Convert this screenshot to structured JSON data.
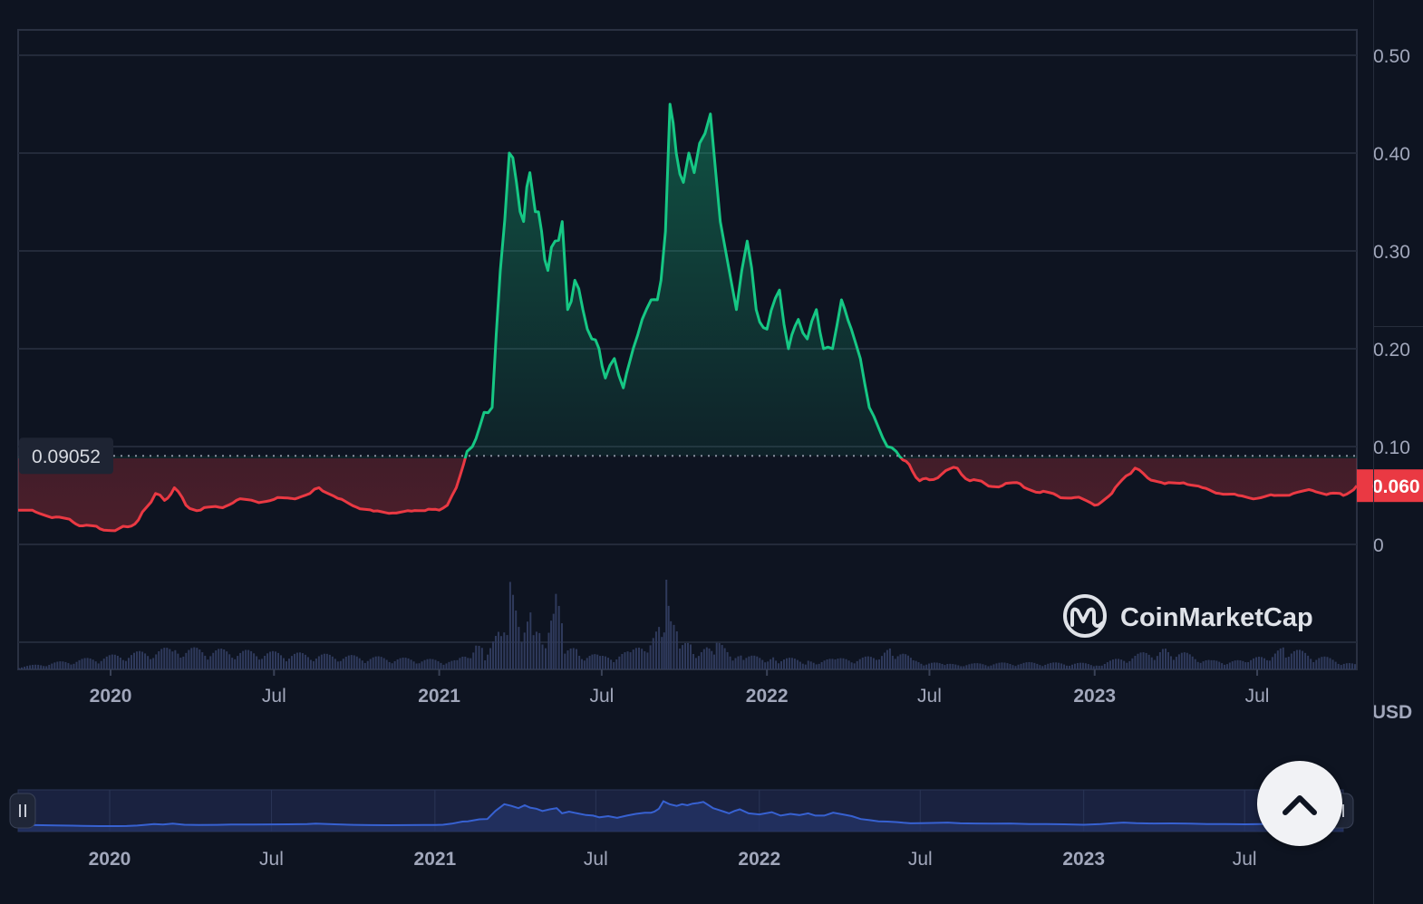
{
  "chart_data": {
    "type": "area",
    "reference_price_label": "0.09052",
    "reference_price": 0.09052,
    "current_price_label": "0.060",
    "current_price": 0.06,
    "currency_label": "USD",
    "y_ticks": [
      "0",
      "0.10",
      "0.20",
      "0.30",
      "0.40",
      "0.50"
    ],
    "y_tick_values": [
      0,
      0.1,
      0.2,
      0.3,
      0.4,
      0.5
    ],
    "ylim": [
      0,
      0.53
    ],
    "x_ticks": [
      "2020",
      "Jul",
      "2021",
      "Jul",
      "2022",
      "Jul",
      "2023",
      "Jul"
    ],
    "x_tick_dates": [
      "2020-01-01",
      "2020-07-01",
      "2021-01-01",
      "2021-07-01",
      "2022-01-01",
      "2022-07-01",
      "2023-01-01",
      "2023-07-01"
    ],
    "xlim": [
      "2019-09-20",
      "2023-10-20"
    ],
    "price_series": {
      "x": [
        "2019-09-20",
        "2019-10-10",
        "2019-11-01",
        "2019-11-20",
        "2019-12-01",
        "2019-12-20",
        "2020-01-10",
        "2020-01-20",
        "2020-02-01",
        "2020-02-10",
        "2020-02-20",
        "2020-03-01",
        "2020-03-12",
        "2020-03-25",
        "2020-04-10",
        "2020-05-01",
        "2020-05-20",
        "2020-06-10",
        "2020-07-01",
        "2020-07-20",
        "2020-08-10",
        "2020-08-20",
        "2020-09-10",
        "2020-10-01",
        "2020-10-20",
        "2020-11-10",
        "2020-12-01",
        "2020-12-20",
        "2021-01-01",
        "2021-01-10",
        "2021-01-20",
        "2021-02-01",
        "2021-02-07",
        "2021-02-15",
        "2021-02-20",
        "2021-03-01",
        "2021-03-10",
        "2021-03-20",
        "2021-03-28",
        "2021-04-05",
        "2021-04-12",
        "2021-04-18",
        "2021-04-25",
        "2021-05-02",
        "2021-05-10",
        "2021-05-18",
        "2021-05-24",
        "2021-06-01",
        "2021-06-10",
        "2021-06-20",
        "2021-06-28",
        "2021-07-05",
        "2021-07-15",
        "2021-07-25",
        "2021-08-05",
        "2021-08-15",
        "2021-08-25",
        "2021-09-01",
        "2021-09-05",
        "2021-09-10",
        "2021-09-15",
        "2021-09-22",
        "2021-09-30",
        "2021-10-06",
        "2021-10-12",
        "2021-10-18",
        "2021-10-24",
        "2021-10-30",
        "2021-11-05",
        "2021-11-10",
        "2021-11-16",
        "2021-11-22",
        "2021-11-28",
        "2021-12-04",
        "2021-12-10",
        "2021-12-20",
        "2022-01-01",
        "2022-01-15",
        "2022-01-25",
        "2022-02-05",
        "2022-02-15",
        "2022-02-25",
        "2022-03-05",
        "2022-03-15",
        "2022-03-25",
        "2022-04-05",
        "2022-04-15",
        "2022-04-25",
        "2022-05-05",
        "2022-05-15",
        "2022-05-25",
        "2022-06-05",
        "2022-06-12",
        "2022-06-20",
        "2022-07-01",
        "2022-07-15",
        "2022-08-01",
        "2022-08-15",
        "2022-09-01",
        "2022-09-20",
        "2022-10-10",
        "2022-11-01",
        "2022-11-20",
        "2022-12-10",
        "2023-01-01",
        "2023-01-20",
        "2023-02-05",
        "2023-02-15",
        "2023-03-01",
        "2023-03-20",
        "2023-04-10",
        "2023-05-01",
        "2023-05-20",
        "2023-06-10",
        "2023-07-01",
        "2023-07-20",
        "2023-08-10",
        "2023-09-01",
        "2023-09-20",
        "2023-10-05",
        "2023-10-20"
      ],
      "y": [
        0.035,
        0.033,
        0.028,
        0.023,
        0.019,
        0.016,
        0.016,
        0.018,
        0.025,
        0.038,
        0.052,
        0.045,
        0.058,
        0.04,
        0.035,
        0.038,
        0.045,
        0.044,
        0.046,
        0.047,
        0.052,
        0.058,
        0.047,
        0.038,
        0.034,
        0.032,
        0.034,
        0.036,
        0.035,
        0.04,
        0.058,
        0.095,
        0.1,
        0.12,
        0.135,
        0.14,
        0.28,
        0.4,
        0.37,
        0.33,
        0.38,
        0.34,
        0.32,
        0.28,
        0.31,
        0.33,
        0.24,
        0.27,
        0.24,
        0.21,
        0.2,
        0.17,
        0.19,
        0.16,
        0.2,
        0.23,
        0.25,
        0.25,
        0.27,
        0.32,
        0.45,
        0.4,
        0.37,
        0.4,
        0.38,
        0.41,
        0.42,
        0.44,
        0.38,
        0.33,
        0.3,
        0.27,
        0.24,
        0.28,
        0.31,
        0.24,
        0.22,
        0.26,
        0.2,
        0.23,
        0.21,
        0.24,
        0.2,
        0.2,
        0.25,
        0.22,
        0.19,
        0.14,
        0.12,
        0.1,
        0.095,
        0.085,
        0.075,
        0.065,
        0.066,
        0.072,
        0.078,
        0.065,
        0.062,
        0.06,
        0.062,
        0.053,
        0.05,
        0.048,
        0.04,
        0.052,
        0.07,
        0.078,
        0.068,
        0.062,
        0.063,
        0.058,
        0.052,
        0.05,
        0.047,
        0.05,
        0.052,
        0.055,
        0.052,
        0.05,
        0.06
      ]
    },
    "volume_series": {
      "x": [
        "2019-09-20",
        "2020-03-12",
        "2021-01-20",
        "2021-02-10",
        "2021-02-20",
        "2021-03-10",
        "2021-03-20",
        "2021-04-05",
        "2021-04-15",
        "2021-04-25",
        "2021-05-02",
        "2021-05-10",
        "2021-05-20",
        "2021-06-05",
        "2021-07-01",
        "2021-08-01",
        "2021-08-20",
        "2021-09-05",
        "2021-09-10",
        "2021-09-15",
        "2021-09-25",
        "2021-10-10",
        "2021-10-25",
        "2021-11-05",
        "2021-12-05",
        "2022-01-10",
        "2022-02-15",
        "2022-03-20",
        "2022-05-05",
        "2022-05-20",
        "2022-06-15",
        "2022-07-20",
        "2022-10-10",
        "2023-01-05",
        "2023-03-20",
        "2023-05-10",
        "2023-06-20",
        "2023-08-01",
        "2023-10-20"
      ],
      "y": [
        0.03,
        0.25,
        0.1,
        0.3,
        0.2,
        0.45,
        0.95,
        0.45,
        0.7,
        0.35,
        0.4,
        0.9,
        0.3,
        0.2,
        0.15,
        0.2,
        0.3,
        0.5,
        1.0,
        0.55,
        0.35,
        0.25,
        0.25,
        0.3,
        0.15,
        0.15,
        0.1,
        0.12,
        0.15,
        0.25,
        0.1,
        0.06,
        0.08,
        0.07,
        0.25,
        0.1,
        0.1,
        0.25,
        0.05
      ]
    },
    "grid": true,
    "brand": "CoinMarketCap",
    "colors": {
      "background": "#0e1421",
      "up_line": "#16c784",
      "down_line": "#ea3943",
      "volume": "#2f3a5c",
      "navigator_line": "#3761d1",
      "axis_text": "#a1a7bb"
    }
  },
  "navigator": {
    "x_ticks": [
      "2020",
      "Jul",
      "2021",
      "Jul",
      "2022",
      "Jul",
      "2023",
      "Jul"
    ]
  }
}
